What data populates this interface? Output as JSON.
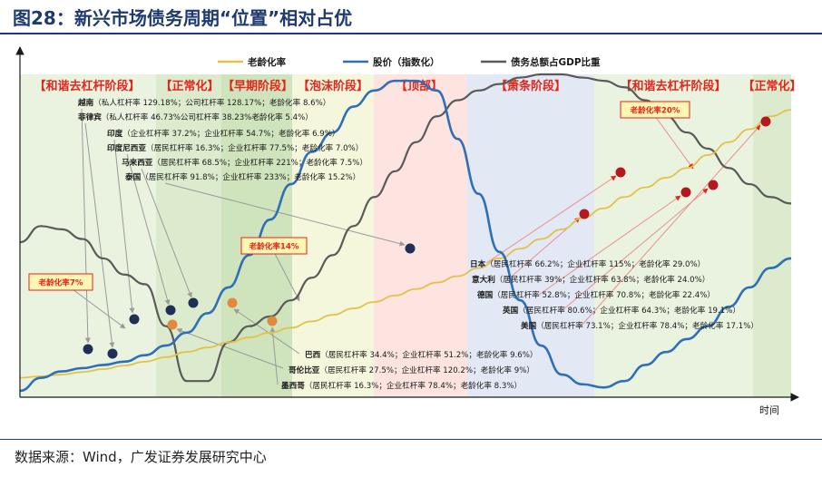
{
  "title": "图28：新兴市场债务周期“位置”相对占优",
  "source": "数据来源：Wind，广发证券发展研究中心",
  "colors": {
    "aging": "#e3c14a",
    "stock": "#2e6fb7",
    "debt": "#5a5a5a",
    "stage_text": "#e2261c",
    "navy_dot": "#1f2f56",
    "orange_dot": "#e08a3c",
    "red_dot": "#b3191e"
  },
  "chart_data": {
    "type": "line",
    "xlabel": "时间",
    "ylabel": "",
    "legend_position": "top",
    "series": [
      {
        "name": "老龄化率",
        "color": "#e3c14a",
        "values": [
          6,
          6.5,
          7,
          7.8,
          8.7,
          9.8,
          11,
          12.4,
          14,
          15.4,
          17,
          18.5,
          20,
          21.5,
          23.5,
          25.5,
          27.5,
          29.5,
          31.5,
          33.5,
          35.5,
          37.5,
          40,
          43,
          46,
          49,
          52,
          55.5,
          58.5,
          62,
          65,
          68,
          71,
          75,
          79,
          83,
          87,
          89
        ]
      },
      {
        "name": "股价（指数化）",
        "color": "#2e6fb7",
        "values": [
          2,
          6,
          8,
          9,
          10,
          11,
          13,
          16,
          20,
          26,
          34,
          44,
          55,
          66,
          76,
          82,
          90,
          95,
          98,
          98,
          95,
          80,
          63,
          45,
          30,
          16,
          7,
          4,
          3,
          5,
          10,
          14,
          18,
          22,
          28,
          34,
          40,
          43
        ]
      },
      {
        "name": "债务总额占GDP比重",
        "color": "#5a5a5a",
        "values": [
          48,
          53,
          52,
          49,
          43,
          38,
          35,
          22,
          5,
          5,
          17,
          22,
          25,
          30,
          37,
          44,
          53,
          62,
          70,
          79,
          87,
          92,
          95,
          97,
          99,
          100,
          100,
          99,
          98,
          96,
          92,
          87,
          82,
          77,
          71,
          66,
          62,
          60
        ]
      }
    ],
    "stages": [
      "【和谐去杠杆阶段】",
      "【正常化】",
      "【早期阶段】",
      "【泡沫阶段】",
      "【顶部】",
      "【萧条阶段】",
      "【和谐去杠杆阶段】",
      "【正常化】"
    ],
    "aging_boxes": [
      "老龄化率7%",
      "老龄化率14%",
      "老龄化率20%"
    ],
    "countries": [
      {
        "name": "越南",
        "detail": "（私人杠杆率 129.18%；公司杠杆率 128.17%；老龄化率 8.6%）",
        "marker": "navy"
      },
      {
        "name": "菲律宾",
        "detail": "（私人杠杆率 46.73%公司杠杆率 38.23%老龄化率 5.4%）",
        "marker": "navy"
      },
      {
        "name": "印度",
        "detail": "（企业杠杆率 37.2%；企业杠杆率 54.7%；老龄化率 6.9%）",
        "marker": "navy"
      },
      {
        "name": "印度尼西亚",
        "detail": "（居民杠杆率 16.3%；企业杠杆率 77.5%；老龄化率 7.0%）",
        "marker": "navy"
      },
      {
        "name": "马来西亚",
        "detail": "（居民杠杆率 68.5%；企业杠杆率 221%；老龄化率 7.5%）",
        "marker": "navy"
      },
      {
        "name": "泰国",
        "detail": "（居民杠杆率 91.8%；企业杠杆率 233%；老龄化率 15.2%）",
        "marker": "navy"
      },
      {
        "name": "巴西",
        "detail": "（居民杠杆率 34.4%；企业杠杆率 51.2%；老龄化率 9.6%）",
        "marker": "orange"
      },
      {
        "name": "哥伦比亚",
        "detail": "（居民杠杆率 27.5%；企业杠杆率 120.2%；老龄化率 9%）",
        "marker": "orange"
      },
      {
        "name": "墨西哥",
        "detail": "（居民杠杆率 16.3%；企业杠杆率 78.4%；老龄化率 8.3%）",
        "marker": "orange"
      },
      {
        "name": "日本",
        "detail": "（居民杠杆率 66.2%；企业杠杆率 115%；老龄化率 29.0%）",
        "marker": "red"
      },
      {
        "name": "意大利",
        "detail": "（居民杠杆率 39%；企业杠杆率 63.8%；老龄化率 24.0%）",
        "marker": "red"
      },
      {
        "name": "德国",
        "detail": "（居民杠杆率 52.8%；企业杠杆率 70.8%；老龄化率 22.4%）",
        "marker": "red"
      },
      {
        "name": "英国",
        "detail": "（居民杠杆率 80.6%；企业杠杆率 64.3%；老龄化率 19.1%）",
        "marker": "red"
      },
      {
        "name": "美国",
        "detail": "（居民杠杆率 73.1%；企业杠杆率 78.4%；老龄化率 17.1%）",
        "marker": "red"
      }
    ]
  }
}
